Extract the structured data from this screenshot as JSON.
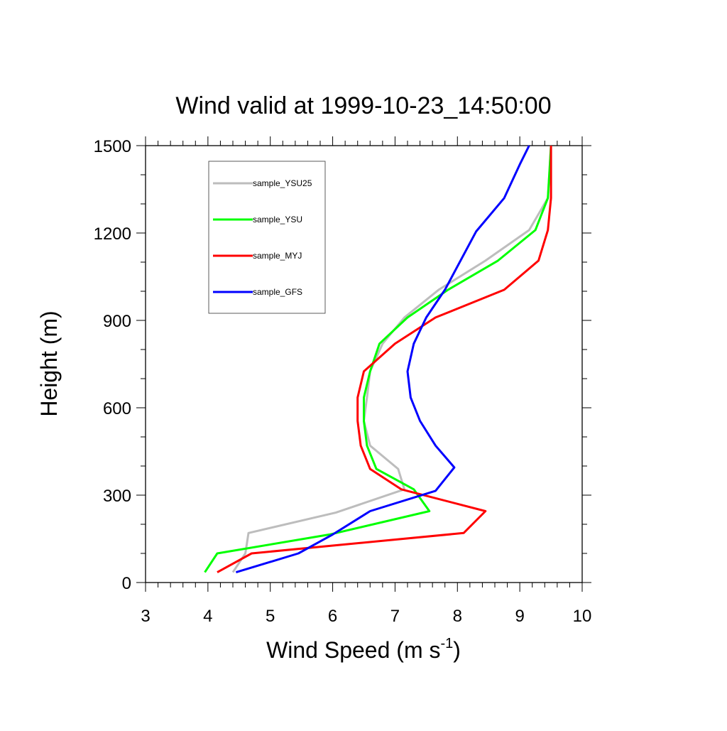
{
  "chart_data": {
    "type": "line",
    "title": "Wind valid at 1999-10-23_14:50:00",
    "xlabel": "Wind Speed (m s",
    "xlabel_superscript": "-1",
    "xlabel_suffix": ")",
    "ylabel": "Height (m)",
    "xlim": [
      3,
      10
    ],
    "ylim": [
      0,
      1500
    ],
    "x_ticks": [
      "3",
      "4",
      "5",
      "6",
      "7",
      "8",
      "9",
      "10"
    ],
    "y_ticks": [
      "0",
      "300",
      "600",
      "900",
      "1200",
      "1500"
    ],
    "legend_position": "top-left",
    "grid": false,
    "series": [
      {
        "name": "sample_YSU25",
        "color": "#bdbdbd",
        "points": [
          [
            4.4,
            35
          ],
          [
            4.6,
            100
          ],
          [
            4.65,
            170
          ],
          [
            6.05,
            240
          ],
          [
            7.15,
            320
          ],
          [
            7.05,
            390
          ],
          [
            6.6,
            470
          ],
          [
            6.5,
            555
          ],
          [
            6.55,
            635
          ],
          [
            6.6,
            725
          ],
          [
            6.8,
            820
          ],
          [
            7.15,
            910
          ],
          [
            7.7,
            1005
          ],
          [
            8.45,
            1105
          ],
          [
            9.15,
            1210
          ],
          [
            9.45,
            1320
          ],
          [
            9.5,
            1500
          ]
        ]
      },
      {
        "name": "sample_YSU",
        "color": "#00ff00",
        "points": [
          [
            3.95,
            35
          ],
          [
            4.15,
            100
          ],
          [
            5.95,
            165
          ],
          [
            7.55,
            245
          ],
          [
            7.3,
            320
          ],
          [
            6.7,
            390
          ],
          [
            6.55,
            470
          ],
          [
            6.5,
            555
          ],
          [
            6.5,
            635
          ],
          [
            6.6,
            725
          ],
          [
            6.75,
            820
          ],
          [
            7.2,
            910
          ],
          [
            7.85,
            1005
          ],
          [
            8.65,
            1105
          ],
          [
            9.25,
            1210
          ],
          [
            9.45,
            1320
          ],
          [
            9.5,
            1500
          ]
        ]
      },
      {
        "name": "sample_MYJ",
        "color": "#ff0000",
        "points": [
          [
            4.15,
            35
          ],
          [
            4.7,
            100
          ],
          [
            8.1,
            170
          ],
          [
            8.45,
            245
          ],
          [
            7.1,
            320
          ],
          [
            6.6,
            390
          ],
          [
            6.45,
            470
          ],
          [
            6.4,
            555
          ],
          [
            6.4,
            635
          ],
          [
            6.5,
            725
          ],
          [
            7.0,
            820
          ],
          [
            7.65,
            910
          ],
          [
            8.75,
            1005
          ],
          [
            9.3,
            1105
          ],
          [
            9.45,
            1210
          ],
          [
            9.5,
            1320
          ],
          [
            9.5,
            1500
          ]
        ]
      },
      {
        "name": "sample_GFS",
        "color": "#0000ff",
        "points": [
          [
            4.45,
            35
          ],
          [
            5.45,
            100
          ],
          [
            6.0,
            165
          ],
          [
            6.6,
            245
          ],
          [
            7.65,
            315
          ],
          [
            7.95,
            395
          ],
          [
            7.65,
            470
          ],
          [
            7.4,
            555
          ],
          [
            7.25,
            635
          ],
          [
            7.2,
            725
          ],
          [
            7.3,
            820
          ],
          [
            7.5,
            910
          ],
          [
            7.8,
            1005
          ],
          [
            8.3,
            1205
          ],
          [
            8.75,
            1320
          ],
          [
            9.0,
            1435
          ],
          [
            9.15,
            1500
          ]
        ]
      }
    ]
  }
}
